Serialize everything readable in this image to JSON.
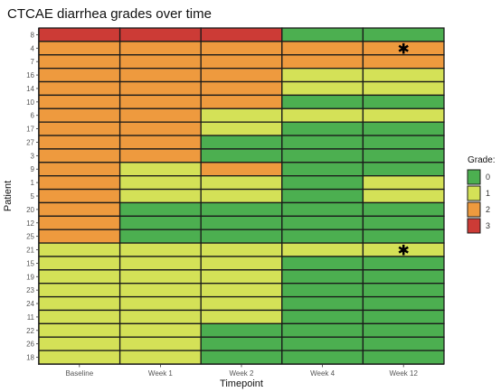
{
  "chart_data": {
    "type": "heatmap",
    "title": "CTCAE diarrhea grades over time",
    "xlabel": "Timepoint",
    "ylabel": "Patient",
    "x": [
      "Baseline",
      "Week 1",
      "Week 2",
      "Week 4",
      "Week 12"
    ],
    "y": [
      "8",
      "4",
      "7",
      "16",
      "14",
      "10",
      "6",
      "17",
      "27",
      "3",
      "9",
      "1",
      "5",
      "20",
      "12",
      "25",
      "21",
      "15",
      "19",
      "23",
      "24",
      "11",
      "22",
      "26",
      "18"
    ],
    "values": [
      [
        3,
        3,
        3,
        0,
        0
      ],
      [
        2,
        2,
        2,
        2,
        2
      ],
      [
        2,
        2,
        2,
        2,
        2
      ],
      [
        2,
        2,
        2,
        1,
        1
      ],
      [
        2,
        2,
        2,
        1,
        1
      ],
      [
        2,
        2,
        2,
        0,
        0
      ],
      [
        2,
        2,
        1,
        1,
        1
      ],
      [
        2,
        2,
        1,
        0,
        0
      ],
      [
        2,
        2,
        0,
        0,
        0
      ],
      [
        2,
        2,
        0,
        0,
        0
      ],
      [
        2,
        1,
        2,
        0,
        0
      ],
      [
        2,
        1,
        1,
        0,
        1
      ],
      [
        2,
        1,
        1,
        0,
        1
      ],
      [
        2,
        0,
        0,
        0,
        0
      ],
      [
        2,
        0,
        0,
        0,
        0
      ],
      [
        2,
        0,
        0,
        0,
        0
      ],
      [
        1,
        1,
        1,
        1,
        1
      ],
      [
        1,
        1,
        1,
        0,
        0
      ],
      [
        1,
        1,
        1,
        0,
        0
      ],
      [
        1,
        1,
        1,
        0,
        0
      ],
      [
        1,
        1,
        1,
        0,
        0
      ],
      [
        1,
        1,
        1,
        0,
        0
      ],
      [
        1,
        1,
        0,
        0,
        0
      ],
      [
        1,
        1,
        0,
        0,
        0
      ],
      [
        1,
        1,
        0,
        0,
        0
      ]
    ],
    "annotations": [
      {
        "patient": "4",
        "timepoint": "Week 12",
        "symbol": "✱"
      },
      {
        "patient": "21",
        "timepoint": "Week 12",
        "symbol": "✱"
      }
    ],
    "legend": {
      "title": "Grade:",
      "placement": "right",
      "items": [
        {
          "label": "0",
          "color": "#4caf50"
        },
        {
          "label": "1",
          "color": "#d4e157"
        },
        {
          "label": "2",
          "color": "#ee9a3e"
        },
        {
          "label": "3",
          "color": "#cc3b36"
        }
      ]
    }
  }
}
